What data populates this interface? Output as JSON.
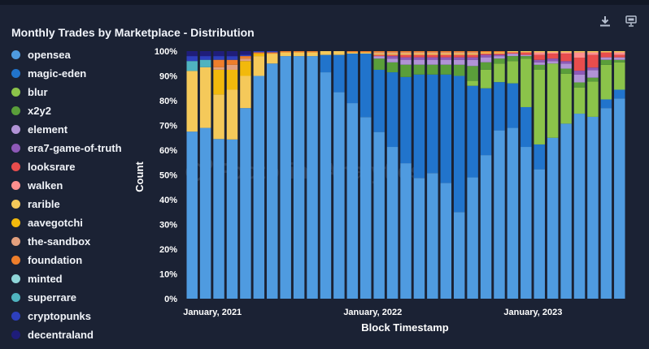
{
  "toolbar": {
    "download_icon": "download-icon",
    "embed_icon": "embed-icon"
  },
  "watermark": "Footprint Analytics",
  "chart_data": {
    "type": "bar",
    "stacked": true,
    "normalized": true,
    "title": "Monthly Trades by Marketplace - Distribution",
    "xlabel": "Block Timestamp",
    "ylabel": "Count",
    "ylim": [
      0,
      100
    ],
    "yticks": [
      "0%",
      "10%",
      "20%",
      "30%",
      "40%",
      "50%",
      "60%",
      "70%",
      "80%",
      "90%",
      "100%"
    ],
    "xtick_labels": [
      {
        "index": 0,
        "label": "January, 2021"
      },
      {
        "index": 12,
        "label": "January, 2022"
      },
      {
        "index": 24,
        "label": "January, 2023"
      }
    ],
    "categories": [
      "2021-01",
      "2021-02",
      "2021-03",
      "2021-04",
      "2021-05",
      "2021-06",
      "2021-07",
      "2021-08",
      "2021-09",
      "2021-10",
      "2021-11",
      "2021-12",
      "2022-01",
      "2022-02",
      "2022-03",
      "2022-04",
      "2022-05",
      "2022-06",
      "2022-07",
      "2022-08",
      "2022-09",
      "2022-10",
      "2022-11",
      "2022-12",
      "2023-01",
      "2023-02",
      "2023-03",
      "2023-04",
      "2023-05",
      "2023-06",
      "2023-07",
      "2023-08",
      "2023-09"
    ],
    "series": [
      {
        "name": "opensea",
        "color": "#4f9be0",
        "values": [
          67.5,
          69,
          64.5,
          64,
          77,
          90,
          95,
          98,
          98,
          98,
          91,
          83,
          79,
          73,
          67,
          61,
          55,
          49,
          51,
          47,
          35,
          49,
          58,
          68,
          69,
          61,
          52,
          65,
          70,
          71,
          72,
          77,
          80.5
        ]
      },
      {
        "name": "magic-eden",
        "color": "#2174cc",
        "values": [
          0,
          0,
          0,
          0,
          0,
          0,
          0,
          0,
          0,
          0,
          7,
          15,
          20,
          25.5,
          25,
          30,
          35,
          42,
          40,
          44,
          55,
          37,
          27,
          19.5,
          18,
          16,
          10,
          0,
          0,
          0,
          0,
          3.5,
          3.5
        ]
      },
      {
        "name": "blur",
        "color": "#8bc34a",
        "values": [
          0,
          0,
          0,
          0,
          0,
          0,
          0,
          0,
          0,
          0,
          0,
          0,
          0,
          0,
          0,
          0,
          0,
          0,
          0,
          0,
          0,
          2,
          7.5,
          7.5,
          9,
          19.5,
          30,
          30,
          20,
          10,
          14,
          14,
          11
        ]
      },
      {
        "name": "x2y2",
        "color": "#5a9e3a",
        "values": [
          0,
          0,
          0,
          0,
          0,
          0,
          0,
          0,
          0,
          0,
          0,
          0,
          0,
          0,
          4.5,
          4,
          5,
          4,
          4,
          4,
          4.5,
          6,
          3,
          2,
          2,
          1,
          2,
          0,
          2,
          2,
          1.5,
          2,
          1
        ]
      },
      {
        "name": "element",
        "color": "#b193d6",
        "values": [
          0,
          0,
          0,
          0,
          0,
          0,
          0,
          0,
          0,
          0,
          0,
          0,
          0,
          0,
          1,
          1.5,
          2,
          2,
          2,
          2,
          2,
          2.5,
          2,
          1,
          1,
          0.5,
          1,
          1,
          2,
          3,
          3,
          1,
          1
        ]
      },
      {
        "name": "era7-game-of-truth",
        "color": "#8e59b8",
        "values": [
          0,
          0,
          0,
          0,
          0,
          0,
          0,
          0,
          0,
          0,
          0,
          0,
          0,
          0,
          0,
          1,
          1,
          1,
          1,
          1,
          1,
          1,
          1,
          0.5,
          0,
          0,
          1,
          1,
          1,
          1.5,
          1,
          0,
          0
        ]
      },
      {
        "name": "looksrare",
        "color": "#e84d4d",
        "values": [
          0,
          0,
          0,
          0,
          0,
          0,
          0,
          0,
          0,
          0,
          0,
          0,
          0,
          0,
          0.5,
          0.5,
          1,
          1,
          1,
          1,
          1,
          1,
          0.5,
          0.5,
          0.5,
          1,
          2,
          2,
          3,
          5,
          5,
          2,
          1
        ]
      },
      {
        "name": "walken",
        "color": "#ff8f8f",
        "values": [
          0,
          0,
          0,
          0,
          0,
          0,
          0,
          0,
          0,
          0,
          0,
          0,
          0,
          0,
          0,
          0,
          0,
          0,
          0,
          0,
          0,
          0,
          0,
          0,
          0,
          0,
          1,
          0.5,
          0.5,
          2,
          1,
          0,
          1
        ]
      },
      {
        "name": "rarible",
        "color": "#f5c95a",
        "values": [
          24.5,
          24.5,
          18,
          20,
          13,
          8,
          4,
          1.5,
          1.5,
          1.5,
          1.5,
          1.5,
          0.5,
          0.5,
          0.5,
          0.5,
          0.5,
          0.5,
          0.5,
          0.5,
          0.5,
          0.5,
          0.5,
          0.5,
          0.5,
          0.5,
          0.5,
          0.5,
          0.5,
          0.5,
          0.5,
          0.5,
          0.5
        ]
      },
      {
        "name": "aavegotchi",
        "color": "#f2b90c",
        "values": [
          0,
          0,
          10,
          8,
          6,
          1,
          0,
          0,
          0,
          0,
          0,
          0,
          0,
          0,
          0,
          0,
          0,
          0,
          0,
          0,
          0,
          0,
          0,
          0,
          0,
          0,
          0,
          0,
          0,
          0,
          0,
          0,
          0
        ]
      },
      {
        "name": "the-sandbox",
        "color": "#e3a07e",
        "values": [
          0,
          0,
          1,
          2,
          1,
          0,
          0,
          0,
          0,
          0,
          0,
          0,
          0,
          0,
          0.5,
          0.5,
          0.5,
          0.5,
          0.5,
          0.5,
          0.5,
          0.5,
          0,
          0,
          0,
          0,
          0,
          0,
          0,
          0,
          0,
          0,
          0
        ]
      },
      {
        "name": "foundation",
        "color": "#ee7e2b",
        "values": [
          0,
          0,
          3,
          2,
          1,
          0.5,
          0.5,
          0.5,
          0.5,
          0.5,
          0,
          0,
          0.5,
          0.5,
          0.5,
          0.5,
          0.5,
          0.5,
          0.5,
          0.5,
          0.5,
          0.5,
          0.5,
          0.5,
          0,
          0,
          0,
          0,
          0,
          0,
          0,
          0,
          0
        ]
      },
      {
        "name": "minted",
        "color": "#8fd6d9",
        "values": [
          0,
          0,
          0,
          0,
          0,
          0,
          0,
          0,
          0,
          0,
          0,
          0,
          0,
          0,
          0,
          0,
          0,
          0,
          0,
          0,
          0,
          0,
          0,
          0,
          0,
          0,
          0,
          0,
          0,
          0,
          0,
          0,
          0
        ]
      },
      {
        "name": "superrare",
        "color": "#4fb3bf",
        "values": [
          4,
          3,
          0,
          0,
          0,
          0,
          0,
          0,
          0,
          0,
          0,
          0,
          0,
          0,
          0,
          0,
          0,
          0,
          0,
          0,
          0,
          0,
          0,
          0,
          0,
          0,
          0,
          0,
          0,
          0,
          0,
          0,
          0
        ]
      },
      {
        "name": "cryptopunks",
        "color": "#2d3fbd",
        "values": [
          2,
          1.5,
          1.5,
          1.5,
          0.5,
          0.5,
          0.5,
          0,
          0,
          0,
          0,
          0,
          0,
          0,
          0,
          0,
          0,
          0,
          0,
          0,
          0,
          0,
          0,
          0,
          0,
          0,
          0,
          0,
          0,
          0,
          0,
          0,
          0
        ]
      },
      {
        "name": "decentraland",
        "color": "#1f1d7a",
        "values": [
          2,
          2,
          2,
          2,
          1.5,
          0,
          0,
          0,
          0,
          0,
          0,
          0,
          0,
          0,
          0,
          0,
          0,
          0,
          0,
          0,
          0,
          0,
          0,
          0,
          0,
          0,
          0,
          0,
          0,
          0,
          0,
          0,
          0
        ]
      }
    ]
  }
}
